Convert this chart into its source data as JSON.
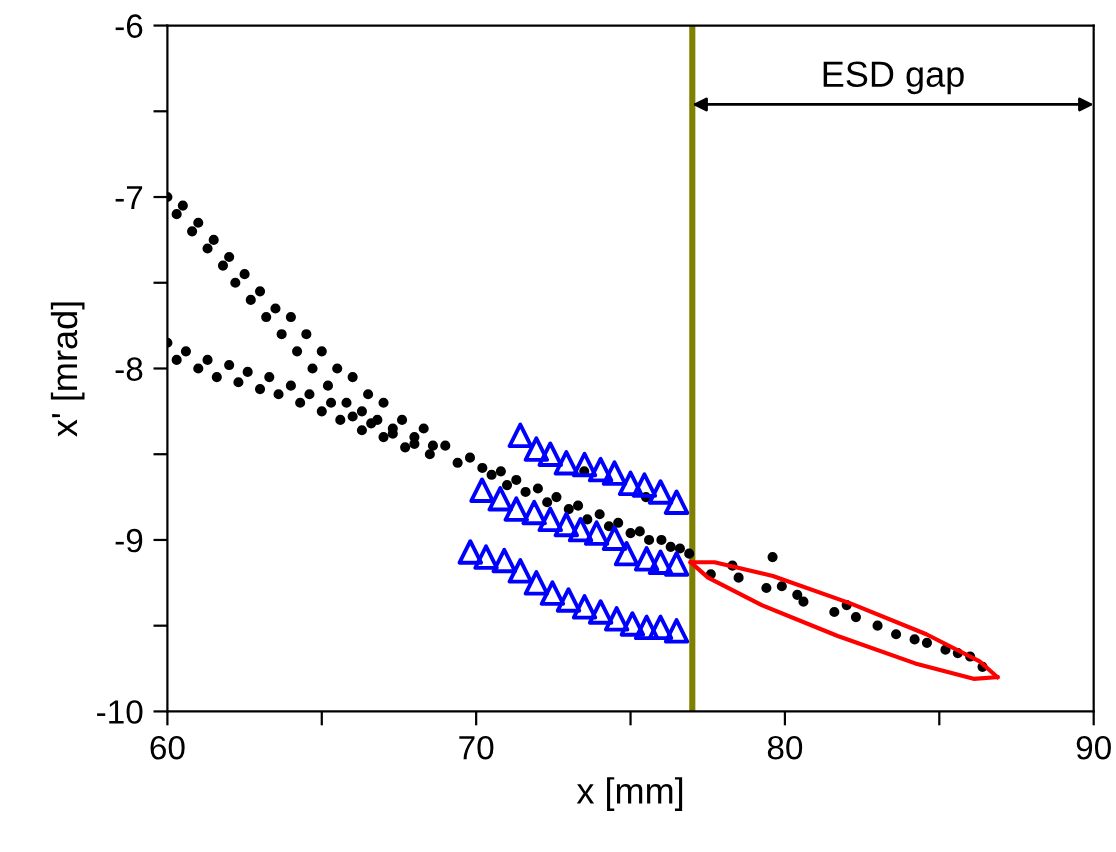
{
  "chart_data": {
    "type": "scatter",
    "xlabel": "x [mm]",
    "ylabel": "x' [mrad]",
    "xlim": [
      60,
      90
    ],
    "ylim": [
      -10,
      -6
    ],
    "xticks": [
      60,
      {
        "value": 65,
        "label": null
      },
      70,
      {
        "value": 75,
        "label": null
      },
      80,
      {
        "value": 85,
        "label": null
      },
      90
    ],
    "yticks": [
      {
        "value": -10,
        "label": "-10"
      },
      {
        "value": -9.5,
        "label": null
      },
      {
        "value": -9,
        "label": "-9"
      },
      {
        "value": -8.5,
        "label": null
      },
      {
        "value": -8,
        "label": "-8"
      },
      {
        "value": -7.5,
        "label": null
      },
      {
        "value": -7,
        "label": "-7"
      },
      {
        "value": -6.5,
        "label": null
      },
      {
        "value": -6,
        "label": "-6"
      }
    ],
    "grid": false,
    "legend": false,
    "ref_lines": [
      {
        "axis": "x",
        "value": 77,
        "label": null,
        "color": "#808000"
      }
    ],
    "annotations": [
      "ESD gap"
    ],
    "series": [
      {
        "marker": "circle",
        "color": "#000000",
        "x": [
          60.0,
          60.3,
          60.5,
          60.8,
          61.0,
          61.3,
          61.5,
          61.8,
          62.0,
          62.2,
          62.5,
          62.7,
          63.0,
          63.2,
          63.5,
          63.7,
          64.0,
          64.2,
          64.5,
          64.7,
          65.0,
          65.2,
          65.5,
          65.8,
          66.0,
          66.3,
          66.5,
          66.8,
          67.0,
          67.3,
          67.6,
          68.0,
          68.3,
          68.6,
          69.0,
          69.4,
          69.8,
          60.0,
          60.3,
          60.6,
          61.0,
          61.3,
          61.6,
          62.0,
          62.3,
          62.6,
          63.0,
          63.3,
          63.6,
          64.0,
          64.3,
          64.6,
          65.0,
          65.3,
          65.6,
          66.0,
          66.3,
          66.6,
          67.0,
          67.3,
          67.7,
          68.0,
          68.5,
          70.2,
          70.5,
          70.8,
          71.0,
          71.3,
          71.6,
          72.0,
          72.3,
          72.6,
          73.0,
          73.3,
          73.6,
          74.0,
          74.3,
          74.6,
          75.0,
          75.3,
          75.6,
          76.0,
          76.3,
          76.6,
          76.9,
          73.5,
          75.5,
          77.6,
          78.3,
          78.5,
          79.4,
          79.6,
          79.9,
          80.4,
          80.6,
          81.6,
          82.0,
          82.3,
          83.0,
          83.6,
          84.2,
          84.6,
          85.2,
          85.6,
          86.0,
          86.4
        ],
        "values": [
          -7.0,
          -7.1,
          -7.05,
          -7.2,
          -7.15,
          -7.3,
          -7.25,
          -7.4,
          -7.35,
          -7.5,
          -7.45,
          -7.6,
          -7.55,
          -7.7,
          -7.65,
          -7.8,
          -7.7,
          -7.9,
          -7.8,
          -8.0,
          -7.9,
          -8.1,
          -8.0,
          -8.2,
          -8.05,
          -8.25,
          -8.15,
          -8.3,
          -8.2,
          -8.35,
          -8.3,
          -8.4,
          -8.35,
          -8.45,
          -8.45,
          -8.55,
          -8.52,
          -7.85,
          -7.95,
          -7.9,
          -8.0,
          -7.95,
          -8.05,
          -7.98,
          -8.08,
          -8.02,
          -8.12,
          -8.05,
          -8.15,
          -8.1,
          -8.2,
          -8.15,
          -8.25,
          -8.2,
          -8.3,
          -8.28,
          -8.36,
          -8.32,
          -8.4,
          -8.38,
          -8.46,
          -8.44,
          -8.5,
          -8.58,
          -8.62,
          -8.6,
          -8.68,
          -8.65,
          -8.72,
          -8.7,
          -8.78,
          -8.75,
          -8.82,
          -8.8,
          -8.88,
          -8.85,
          -8.92,
          -8.9,
          -8.96,
          -8.95,
          -9.0,
          -9.0,
          -9.04,
          -9.05,
          -9.08,
          -8.6,
          -8.75,
          -9.2,
          -9.15,
          -9.22,
          -9.28,
          -9.1,
          -9.27,
          -9.32,
          -9.36,
          -9.42,
          -9.38,
          -9.45,
          -9.5,
          -9.55,
          -9.58,
          -9.6,
          -9.64,
          -9.66,
          -9.68,
          -9.74
        ]
      },
      {
        "marker": "triangle",
        "color": "#0000ff",
        "x": [
          71.43,
          71.95,
          72.4,
          72.92,
          73.51,
          74.03,
          74.48,
          75.0,
          75.45,
          75.97,
          76.49
        ],
        "values": [
          -8.39,
          -8.47,
          -8.5,
          -8.55,
          -8.56,
          -8.59,
          -8.61,
          -8.67,
          -8.68,
          -8.72,
          -8.78
        ]
      },
      {
        "marker": "triangle",
        "color": "#0000ff",
        "x": [
          70.19,
          70.78,
          71.3,
          71.88,
          72.4,
          72.92,
          73.38,
          73.9,
          74.48,
          74.87,
          75.52,
          75.97,
          76.49
        ],
        "values": [
          -8.71,
          -8.76,
          -8.82,
          -8.84,
          -8.88,
          -8.91,
          -8.94,
          -8.96,
          -8.99,
          -9.08,
          -9.11,
          -9.13,
          -9.14
        ]
      },
      {
        "marker": "triangle",
        "color": "#0000ff",
        "x": [
          69.81,
          70.32,
          70.91,
          71.43,
          71.95,
          72.47,
          72.99,
          73.51,
          74.03,
          74.55,
          75.06,
          75.52,
          75.97,
          76.49
        ],
        "values": [
          -9.07,
          -9.1,
          -9.12,
          -9.18,
          -9.25,
          -9.31,
          -9.35,
          -9.39,
          -9.42,
          -9.46,
          -9.49,
          -9.51,
          -9.51,
          -9.53
        ]
      },
      {
        "type": "line",
        "marker": "none",
        "line_style": "solid",
        "color": "#ff0000",
        "x": [
          76.95,
          77.72,
          79.61,
          82.12,
          84.58,
          86.32,
          86.88
        ],
        "values": [
          -9.13,
          -9.13,
          -9.21,
          -9.37,
          -9.55,
          -9.71,
          -9.8
        ]
      },
      {
        "type": "line",
        "marker": "none",
        "line_style": "solid",
        "color": "#ff0000",
        "x": [
          76.95,
          77.51,
          79.25,
          81.71,
          84.22,
          86.11,
          86.88
        ],
        "values": [
          -9.13,
          -9.22,
          -9.38,
          -9.56,
          -9.72,
          -9.81,
          -9.8
        ]
      }
    ]
  }
}
